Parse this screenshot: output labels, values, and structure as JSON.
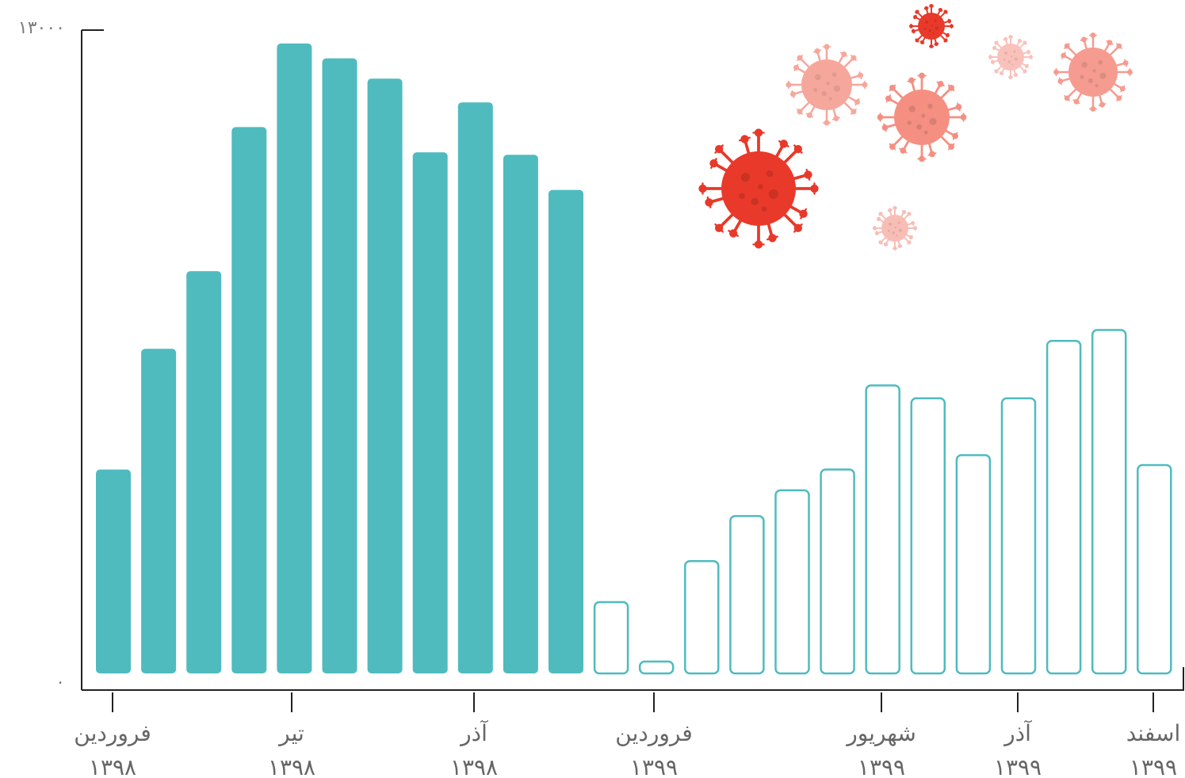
{
  "chart_data": {
    "type": "bar",
    "title": "",
    "xlabel": "",
    "ylabel": "",
    "ylim": [
      0,
      13000
    ],
    "y_tick_labels": [
      "۰",
      "۱۳۰۰۰"
    ],
    "grid": false,
    "legend": "none",
    "fill_color": "#4fbbbf",
    "outline_color": "#4fbbbf",
    "series": [
      {
        "style": "filled",
        "values": [
          4120,
          6560,
          8130,
          11040,
          12730,
          12430,
          12020,
          10530,
          11540,
          10480,
          9770
        ]
      },
      {
        "style": "outline",
        "values": [
          1440,
          240,
          2270,
          3180,
          3700,
          4120,
          5820,
          5560,
          4410,
          5560,
          6720,
          6940,
          4210
        ]
      }
    ],
    "x_ticks": [
      {
        "line1": "فروردین",
        "line2": "۱۳۹۸"
      },
      {
        "line1": "تیر",
        "line2": "۱۳۹۸"
      },
      {
        "line1": "آذر",
        "line2": "۱۳۹۸"
      },
      {
        "line1": "فروردین",
        "line2": "۱۳۹۹"
      },
      {
        "line1": "شهریور",
        "line2": "۱۳۹۹"
      },
      {
        "line1": "آذر",
        "line2": "۱۳۹۹"
      },
      {
        "line1": "اسفند",
        "line2": "۱۳۹۹"
      }
    ],
    "decoration": {
      "icon": "virus-icon",
      "colors": [
        "#e8392a",
        "#f48a7c",
        "#f7ada3"
      ]
    }
  }
}
